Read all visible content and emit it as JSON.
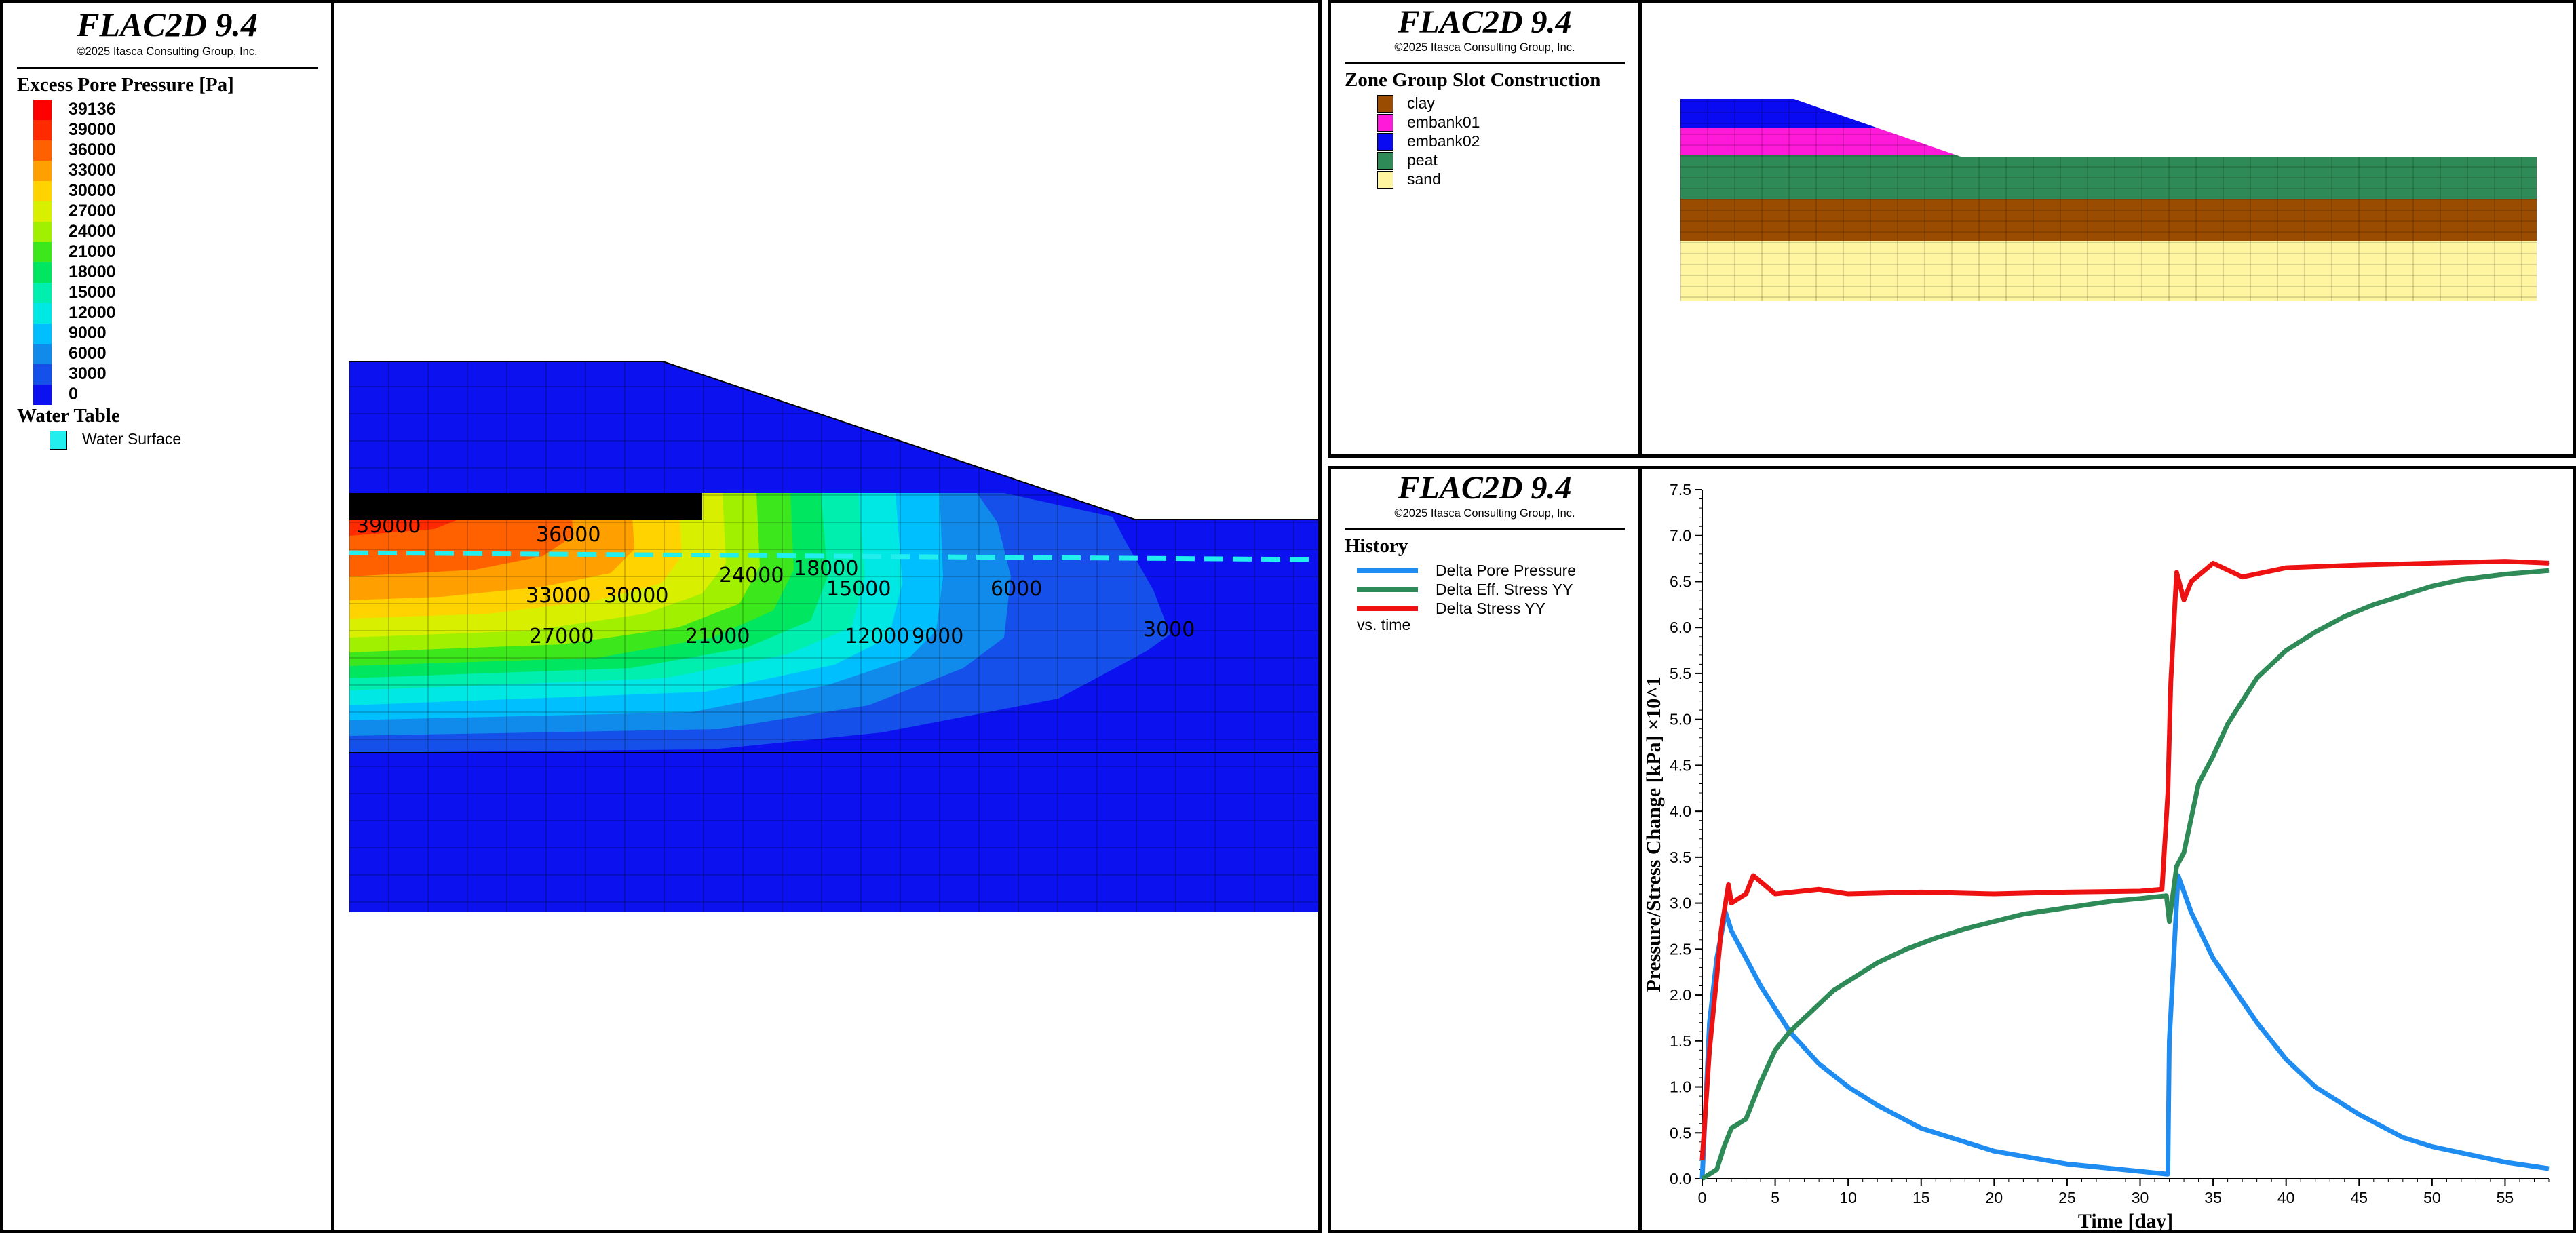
{
  "panels": {
    "contour": {
      "title": "FLAC2D 9.4",
      "copyright": "©2025 Itasca Consulting Group, Inc.",
      "legend_title": "Excess Pore Pressure [Pa]",
      "colorbar": [
        {
          "label": "39136",
          "color": "#ff0000"
        },
        {
          "label": "39000",
          "color": "#ff2a00"
        },
        {
          "label": "36000",
          "color": "#ff6000"
        },
        {
          "label": "33000",
          "color": "#ff9f00"
        },
        {
          "label": "30000",
          "color": "#ffd300"
        },
        {
          "label": "27000",
          "color": "#d8f000"
        },
        {
          "label": "24000",
          "color": "#a0f000"
        },
        {
          "label": "21000",
          "color": "#3ce81c"
        },
        {
          "label": "18000",
          "color": "#00e660"
        },
        {
          "label": "15000",
          "color": "#00eeae"
        },
        {
          "label": "12000",
          "color": "#00e8e4"
        },
        {
          "label": "9000",
          "color": "#00bfff"
        },
        {
          "label": "6000",
          "color": "#108aeb"
        },
        {
          "label": "3000",
          "color": "#1650ea"
        },
        {
          "label": "0",
          "color": "#0b12ef"
        }
      ],
      "water_title": "Water Table",
      "water_label": "Water Surface",
      "water_color": "#22eeee",
      "contour_labels": [
        "39000",
        "36000",
        "33000",
        "30000",
        "27000",
        "24000",
        "21000",
        "18000",
        "15000",
        "12000",
        "9000",
        "6000",
        "3000"
      ]
    },
    "groups": {
      "title": "FLAC2D 9.4",
      "copyright": "©2025 Itasca Consulting Group, Inc.",
      "legend_title": "Zone Group Slot Construction",
      "items": [
        {
          "label": "clay",
          "color": "#9a4d00"
        },
        {
          "label": "embank01",
          "color": "#ff1ad9"
        },
        {
          "label": "embank02",
          "color": "#0a0af2"
        },
        {
          "label": "peat",
          "color": "#2e8b57"
        },
        {
          "label": "sand",
          "color": "#fff5a0"
        }
      ]
    },
    "history": {
      "title": "FLAC2D 9.4",
      "copyright": "©2025 Itasca Consulting Group, Inc.",
      "legend_title": "History",
      "vs_label": "vs. time"
    }
  },
  "chart_data": {
    "type": "line",
    "xlabel": "Time [day]",
    "ylabel": "Pressure/Stress Change [kPa] ×10^1",
    "xlim": [
      0,
      58
    ],
    "ylim": [
      0,
      7.5
    ],
    "x_ticks": [
      "0",
      "5",
      "10",
      "15",
      "20",
      "25",
      "30",
      "35",
      "40",
      "45",
      "50",
      "55"
    ],
    "y_ticks": [
      "0.0",
      "0.5",
      "1.0",
      "1.5",
      "2.0",
      "2.5",
      "3.0",
      "3.5",
      "4.0",
      "4.5",
      "5.0",
      "5.5",
      "6.0",
      "6.5",
      "7.0",
      "7.5"
    ],
    "grid": false,
    "legend": "top-left",
    "series": [
      {
        "name": "Delta Pore Pressure",
        "color": "#1e8cf0",
        "x": [
          0,
          0.5,
          1,
          1.6,
          2,
          4,
          6,
          8,
          10,
          12,
          15,
          18,
          20,
          25,
          30,
          31.9,
          32,
          32.6,
          33.5,
          35,
          38,
          40,
          42,
          45,
          48,
          50,
          55,
          58
        ],
        "y": [
          0,
          1.7,
          2.4,
          2.9,
          2.7,
          2.1,
          1.6,
          1.25,
          1.0,
          0.8,
          0.55,
          0.4,
          0.3,
          0.16,
          0.08,
          0.05,
          1.5,
          3.3,
          2.9,
          2.4,
          1.7,
          1.3,
          1.0,
          0.7,
          0.45,
          0.35,
          0.18,
          0.11
        ]
      },
      {
        "name": "Delta Eff. Stress YY",
        "color": "#2e8b57",
        "x": [
          0,
          1,
          1.5,
          2,
          3,
          4,
          5,
          6,
          7,
          8,
          9,
          10,
          12,
          14,
          16,
          18,
          20,
          22,
          25,
          28,
          30,
          31.8,
          32,
          32.5,
          33,
          34,
          35,
          36,
          37,
          38,
          39,
          40,
          42,
          44,
          46,
          48,
          50,
          52,
          55,
          58
        ],
        "y": [
          0,
          0.1,
          0.35,
          0.55,
          0.65,
          1.05,
          1.4,
          1.6,
          1.75,
          1.9,
          2.05,
          2.15,
          2.35,
          2.5,
          2.62,
          2.72,
          2.8,
          2.88,
          2.95,
          3.02,
          3.05,
          3.08,
          2.8,
          3.4,
          3.55,
          4.3,
          4.6,
          4.95,
          5.2,
          5.45,
          5.6,
          5.75,
          5.95,
          6.12,
          6.25,
          6.35,
          6.45,
          6.52,
          6.58,
          6.62
        ]
      },
      {
        "name": "Delta Stress YY",
        "color": "#ee1111",
        "x": [
          0,
          0.5,
          1,
          1.3,
          1.8,
          2,
          3,
          3.5,
          5,
          8,
          10,
          15,
          20,
          25,
          30,
          31.5,
          31.9,
          32.1,
          32.5,
          33,
          33.5,
          35,
          37,
          40,
          45,
          50,
          55,
          58
        ],
        "y": [
          0.2,
          1.4,
          2.2,
          2.7,
          3.2,
          3.0,
          3.1,
          3.3,
          3.1,
          3.15,
          3.1,
          3.12,
          3.1,
          3.12,
          3.13,
          3.15,
          4.2,
          5.4,
          6.6,
          6.3,
          6.5,
          6.7,
          6.55,
          6.65,
          6.68,
          6.7,
          6.72,
          6.7
        ]
      }
    ]
  }
}
